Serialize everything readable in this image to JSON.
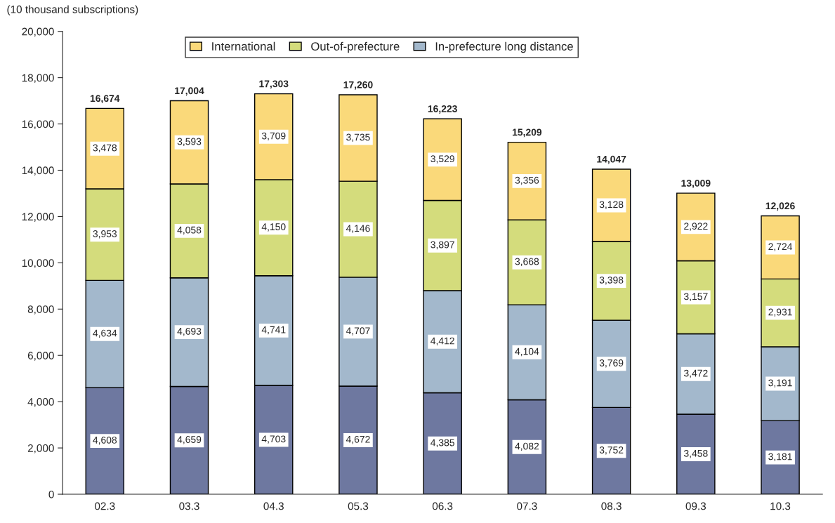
{
  "chart_data": {
    "type": "bar",
    "stacked": true,
    "ylabel": "(10 thousand subscriptions)",
    "categories": [
      "02.3",
      "03.3",
      "04.3",
      "05.3",
      "06.3",
      "07.3",
      "08.3",
      "09.3",
      "10.3"
    ],
    "series": [
      {
        "color": "#6e78a0",
        "values": [
          4608,
          4659,
          4703,
          4672,
          4385,
          4082,
          3752,
          3458,
          3181
        ],
        "value_labels": [
          "4,608",
          "4,659",
          "4,703",
          "4,672",
          "4,385",
          "4,082",
          "3,752",
          "3,458",
          "3,181"
        ]
      },
      {
        "name": "In-prefecture long distance",
        "color": "#a3b8cc",
        "values": [
          4634,
          4693,
          4741,
          4707,
          4412,
          4104,
          3769,
          3472,
          3191
        ],
        "value_labels": [
          "4,634",
          "4,693",
          "4,741",
          "4,707",
          "4,412",
          "4,104",
          "3,769",
          "3,472",
          "3,191"
        ]
      },
      {
        "name": "Out-of-prefecture",
        "color": "#d4dc7c",
        "values": [
          3953,
          4058,
          4150,
          4146,
          3897,
          3668,
          3398,
          3157,
          2931
        ],
        "value_labels": [
          "3,953",
          "4,058",
          "4,150",
          "4,146",
          "3,897",
          "3,668",
          "3,398",
          "3,157",
          "2,931"
        ]
      },
      {
        "name": "International",
        "color": "#fad97a",
        "values": [
          3478,
          3593,
          3709,
          3735,
          3529,
          3356,
          3128,
          2922,
          2724
        ],
        "value_labels": [
          "3,478",
          "3,593",
          "3,709",
          "3,735",
          "3,529",
          "3,356",
          "3,128",
          "2,922",
          "2,724"
        ]
      }
    ],
    "totals": [
      "16,674",
      "17,004",
      "17,303",
      "17,260",
      "16,223",
      "15,209",
      "14,047",
      "13,009",
      "12,026"
    ],
    "ylim": [
      0,
      20000
    ],
    "yticks": [
      0,
      {
        "value": 2000,
        "label": "2,000"
      },
      {
        "value": 4000,
        "label": "4,000"
      },
      {
        "value": 6000,
        "label": "6,000"
      },
      {
        "value": 8000,
        "label": "8,000"
      },
      {
        "value": 10000,
        "label": "10,000"
      },
      {
        "value": 12000,
        "label": "12,000"
      },
      {
        "value": 14000,
        "label": "14,000"
      },
      {
        "value": 16000,
        "label": "16,000"
      },
      {
        "value": 18000,
        "label": "18,000"
      },
      {
        "value": 20000,
        "label": "20,000"
      }
    ],
    "grid": false,
    "legend": "top"
  }
}
